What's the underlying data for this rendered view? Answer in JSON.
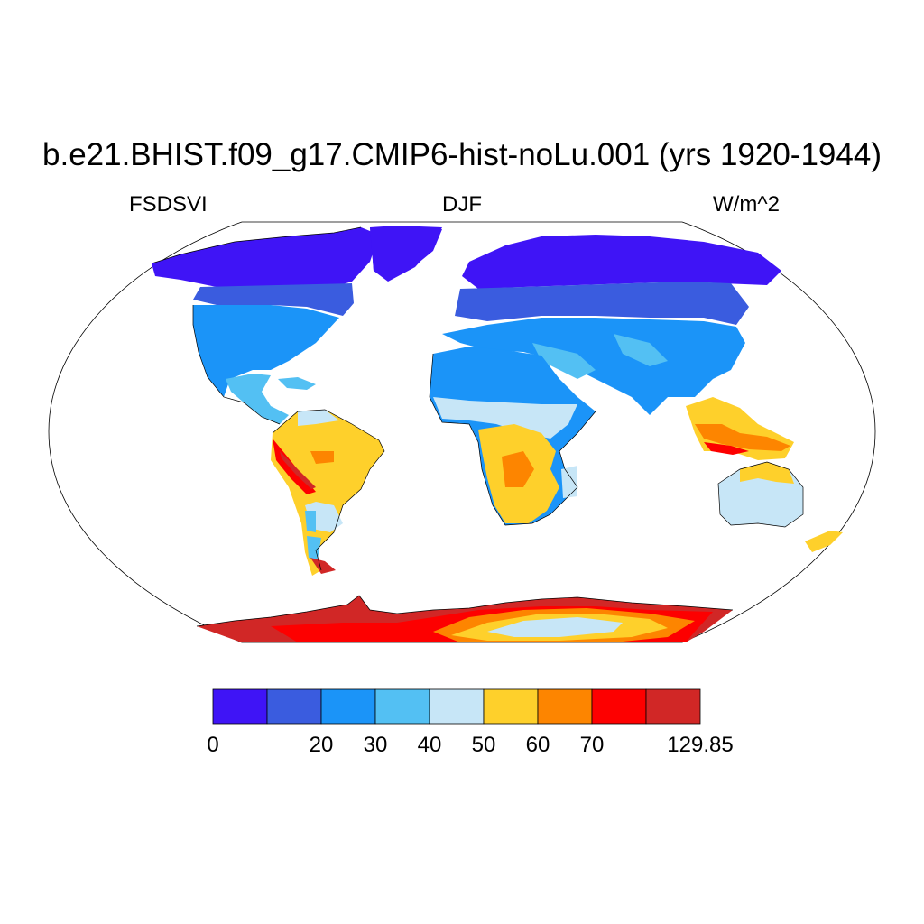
{
  "title": "b.e21.BHIST.f09_g17.CMIP6-hist-noLu.001 (yrs 1920-1944)",
  "variable": "FSDSVI",
  "season": "DJF",
  "units": "W/m^2",
  "colorbar": {
    "colors": [
      "#3f14f6",
      "#3a5cdf",
      "#1b94f8",
      "#53c0f3",
      "#c7e6f7",
      "#fed02b",
      "#fd8500",
      "#fd0000",
      "#d12726"
    ],
    "labels": [
      "0",
      "20",
      "30",
      "40",
      "50",
      "60",
      "70",
      "129.85"
    ]
  },
  "projection": "Robinson",
  "colors": {
    "background": "#ffffff",
    "ocean": "#ffffff",
    "coastline": "#000000"
  }
}
